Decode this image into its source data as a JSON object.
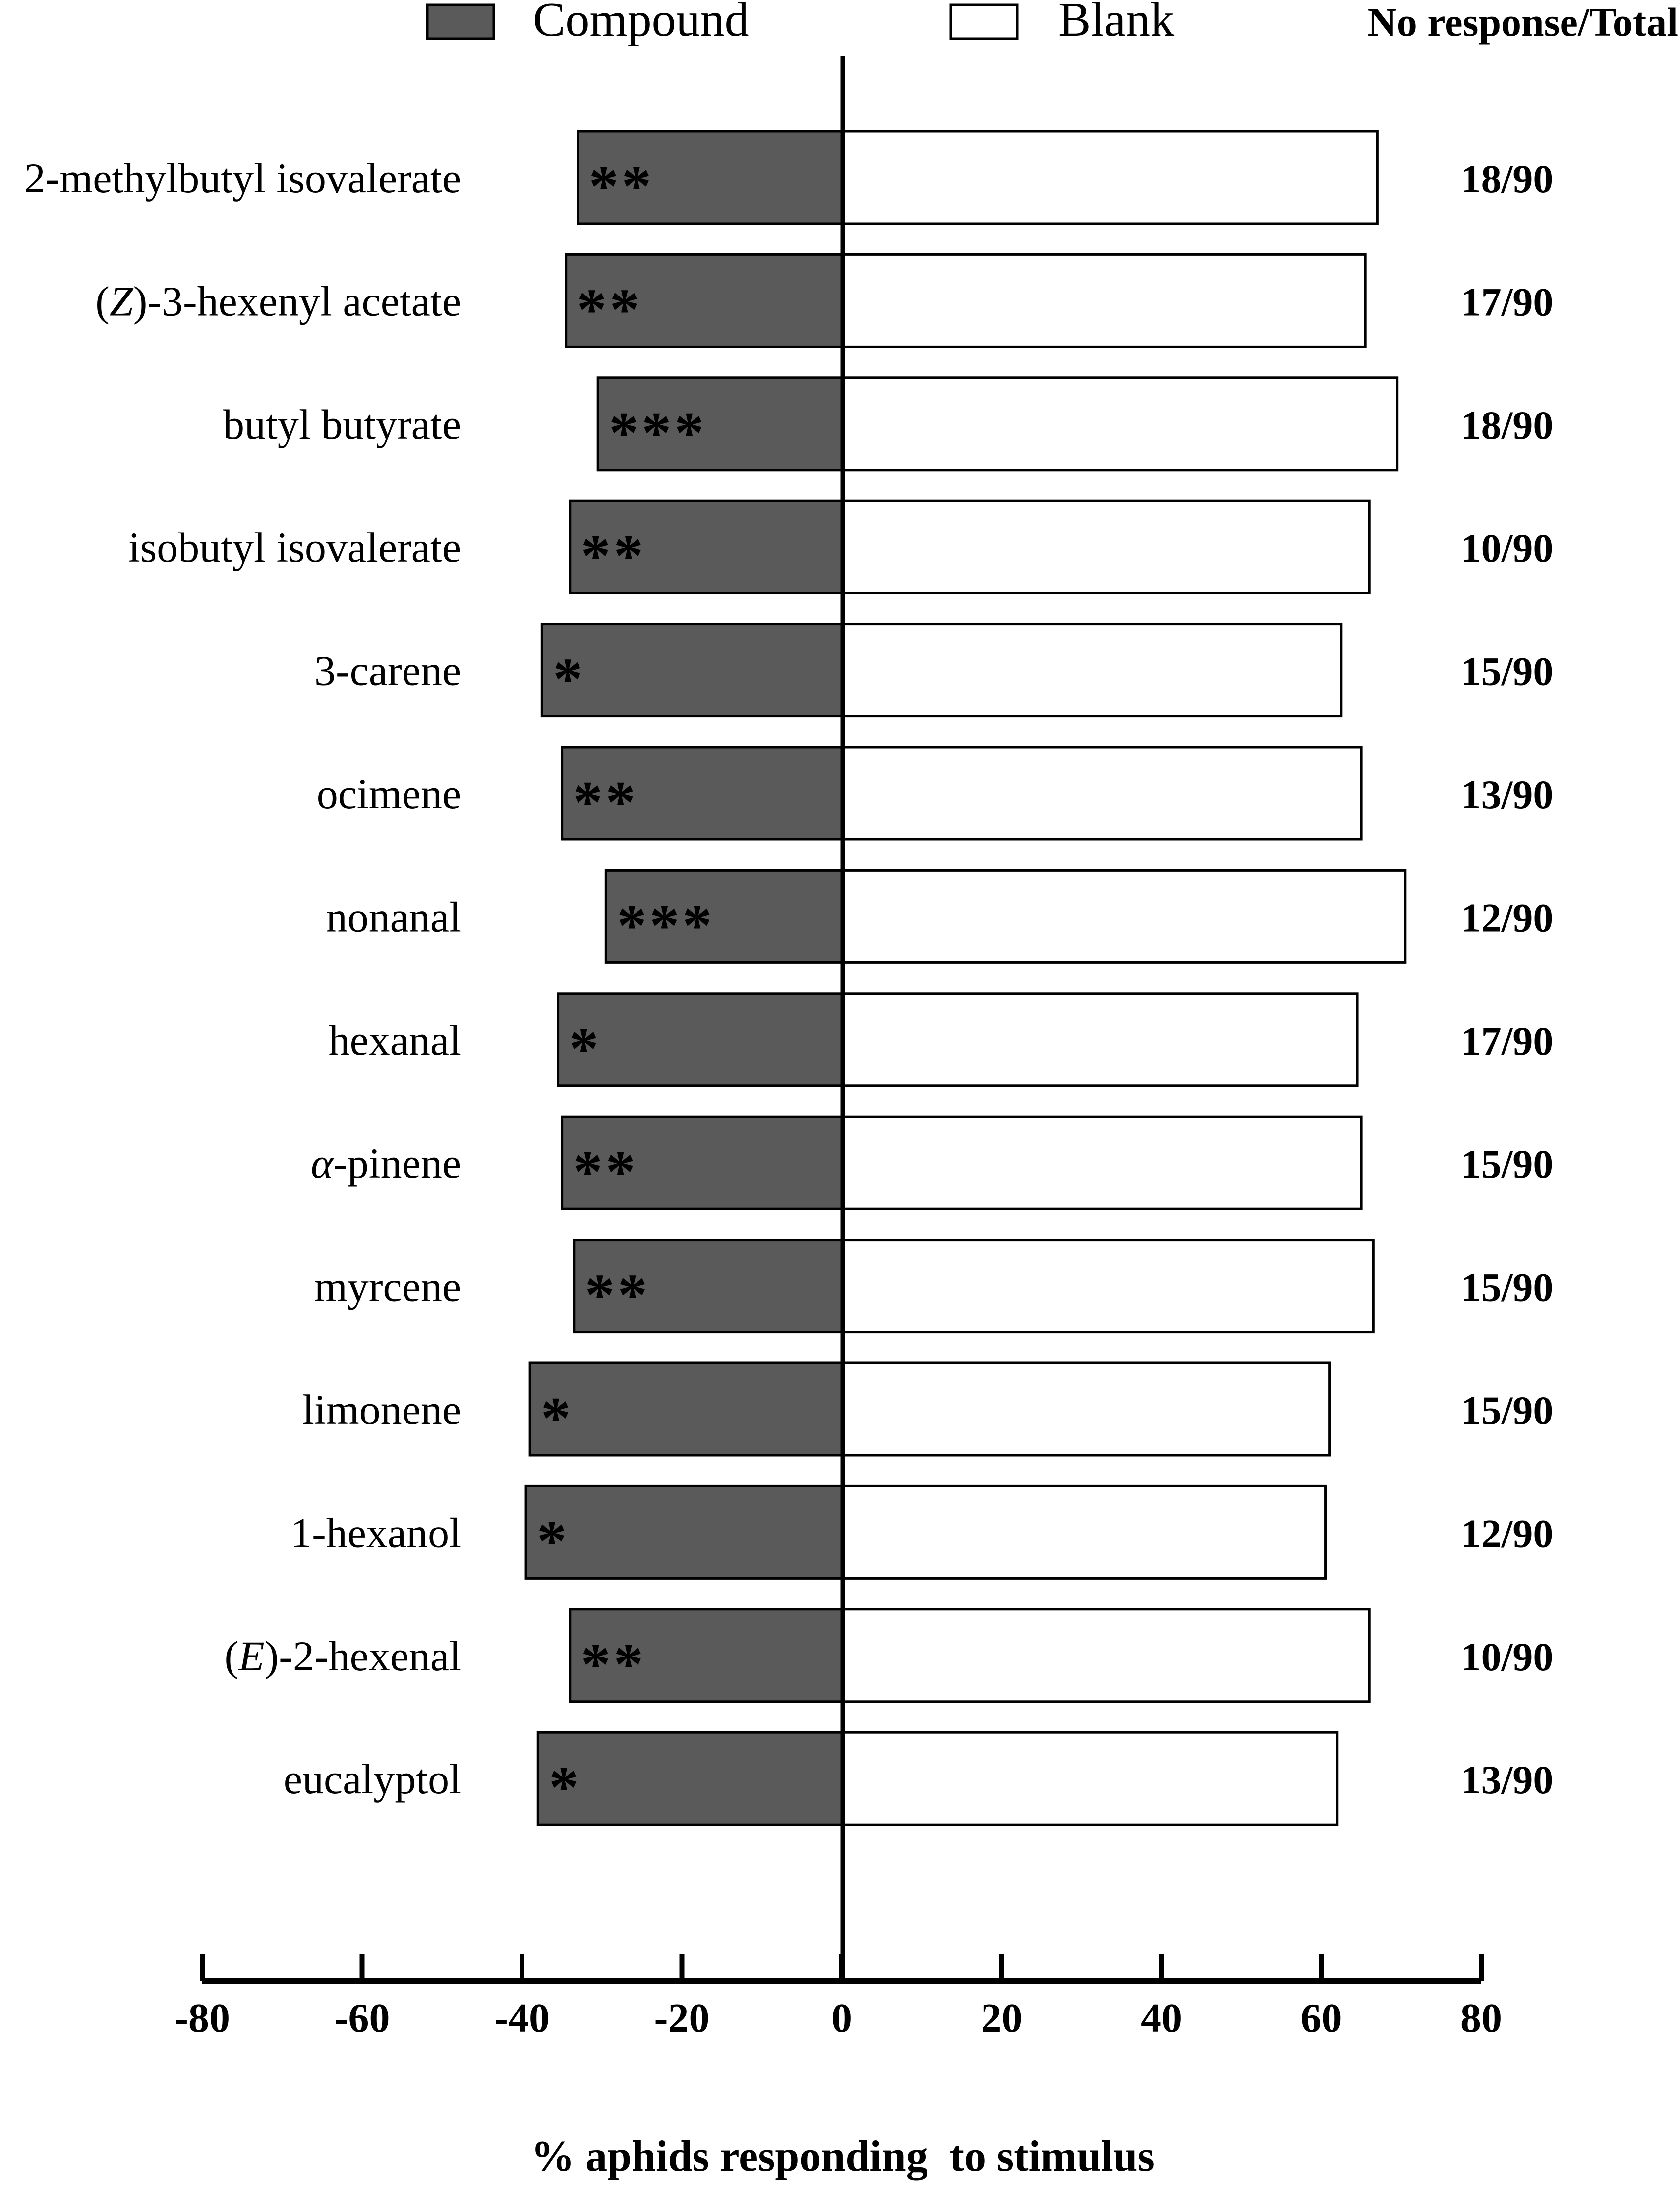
{
  "chart_data": {
    "type": "bar",
    "orientation": "horizontal",
    "title": "",
    "xlabel": "% aphids responding  to stimulus",
    "ylabel": "",
    "xlim": [
      -80,
      80
    ],
    "xticks": [
      "-80",
      "-60",
      "-40",
      "-20",
      "0",
      "20",
      "40",
      "60",
      "80"
    ],
    "xtick_values": [
      -80,
      -60,
      -40,
      -20,
      0,
      20,
      40,
      60,
      80
    ],
    "grid": false,
    "legend_position": "top",
    "legend": [
      {
        "label": "Compound",
        "color": "#5a5a5a"
      },
      {
        "label": "Blank",
        "color": "#ffffff"
      }
    ],
    "right_header": "No response/Total",
    "categories": [
      [
        {
          "t": "2-methylbutyl isovalerate"
        }
      ],
      [
        {
          "t": "("
        },
        {
          "t": "Z",
          "i": true
        },
        {
          "t": ")-3-hexenyl acetate"
        }
      ],
      [
        {
          "t": "butyl butyrate"
        }
      ],
      [
        {
          "t": "isobutyl isovalerate"
        }
      ],
      [
        {
          "t": "3-carene"
        }
      ],
      [
        {
          "t": "ocimene"
        }
      ],
      [
        {
          "t": "nonanal"
        }
      ],
      [
        {
          "t": "hexanal"
        }
      ],
      [
        {
          "t": "α",
          "i": true
        },
        {
          "t": "-pinene"
        }
      ],
      [
        {
          "t": "myrcene"
        }
      ],
      [
        {
          "t": "limonene"
        }
      ],
      [
        {
          "t": "1-hexanol"
        }
      ],
      [
        {
          "t": "("
        },
        {
          "t": "E",
          "i": true
        },
        {
          "t": ")-2-hexenal"
        }
      ],
      [
        {
          "t": "eucalyptol"
        }
      ]
    ],
    "series": [
      {
        "name": "Compound",
        "color": "#5a5a5a",
        "values": [
          -33,
          -34.5,
          -30.5,
          -34,
          -37.5,
          -35,
          -29.5,
          -35.5,
          -35,
          -33.5,
          -39,
          -39.5,
          -34,
          -38
        ]
      },
      {
        "name": "Blank",
        "color": "#ffffff",
        "values": [
          67,
          65.5,
          69.5,
          66,
          62.5,
          65,
          70.5,
          64.5,
          65,
          66.5,
          61,
          60.5,
          66,
          62
        ]
      }
    ],
    "significance": [
      "**",
      "**",
      "***",
      "**",
      "*",
      "**",
      "***",
      "*",
      "**",
      "**",
      "*",
      "*",
      "**",
      "*"
    ],
    "no_response_total": [
      "18/90",
      "17/90",
      "18/90",
      "10/90",
      "15/90",
      "13/90",
      "12/90",
      "17/90",
      "15/90",
      "15/90",
      "15/90",
      "12/90",
      "10/90",
      "13/90"
    ]
  }
}
